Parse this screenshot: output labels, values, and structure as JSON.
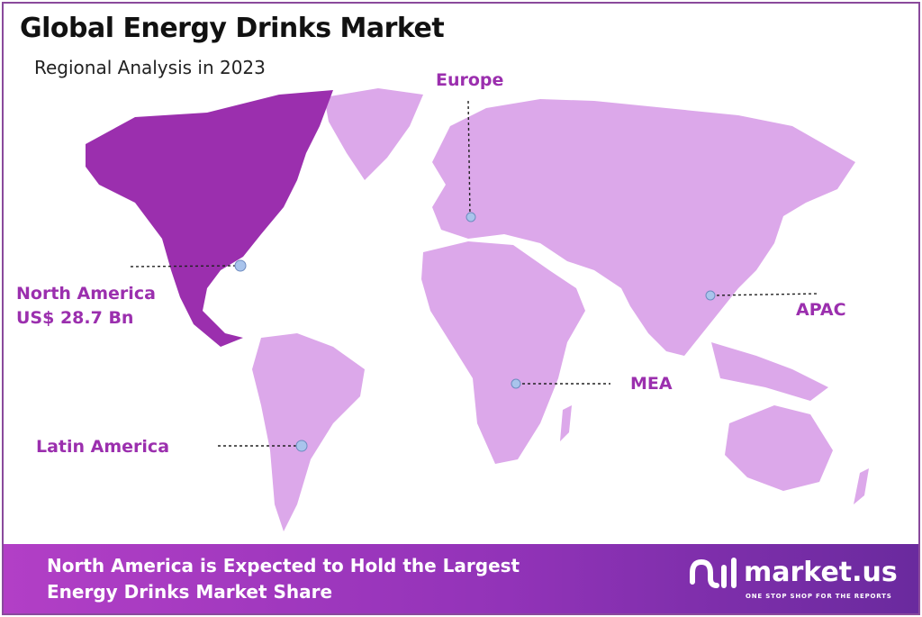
{
  "title": "Global Energy Drinks Market",
  "subtitle": "Regional Analysis in 2023",
  "regions": [
    {
      "name": "North America",
      "value": "US$ 28.7 Bn",
      "highlight": true
    },
    {
      "name": "Europe"
    },
    {
      "name": "APAC"
    },
    {
      "name": "MEA"
    },
    {
      "name": "Latin America"
    }
  ],
  "colors": {
    "highlight": "#9b2fae",
    "land": "#dca8ea",
    "label": "#9b2fae",
    "marker": "#a9c4ec"
  },
  "footer": {
    "line1": "North America is Expected to Hold the Largest",
    "line2": "Energy Drinks Market Share"
  },
  "logo": {
    "brand": "market.us",
    "tagline": "ONE STOP SHOP FOR THE REPORTS"
  }
}
